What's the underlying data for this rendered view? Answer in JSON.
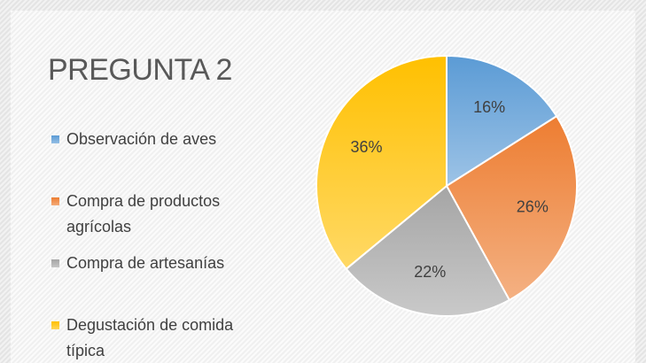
{
  "chart_data": {
    "type": "pie",
    "title": "PREGUNTA 2",
    "categories": [
      "Observación de aves",
      "Compra de productos agrícolas",
      "Compra de artesanías",
      "Degustación de comida típica"
    ],
    "values": [
      16,
      26,
      22,
      36
    ],
    "value_labels": [
      "16%",
      "26%",
      "22%",
      "36%"
    ],
    "colors": [
      "#5b9bd5",
      "#ed7d31",
      "#a5a5a5",
      "#ffc000"
    ],
    "legend": "left"
  }
}
